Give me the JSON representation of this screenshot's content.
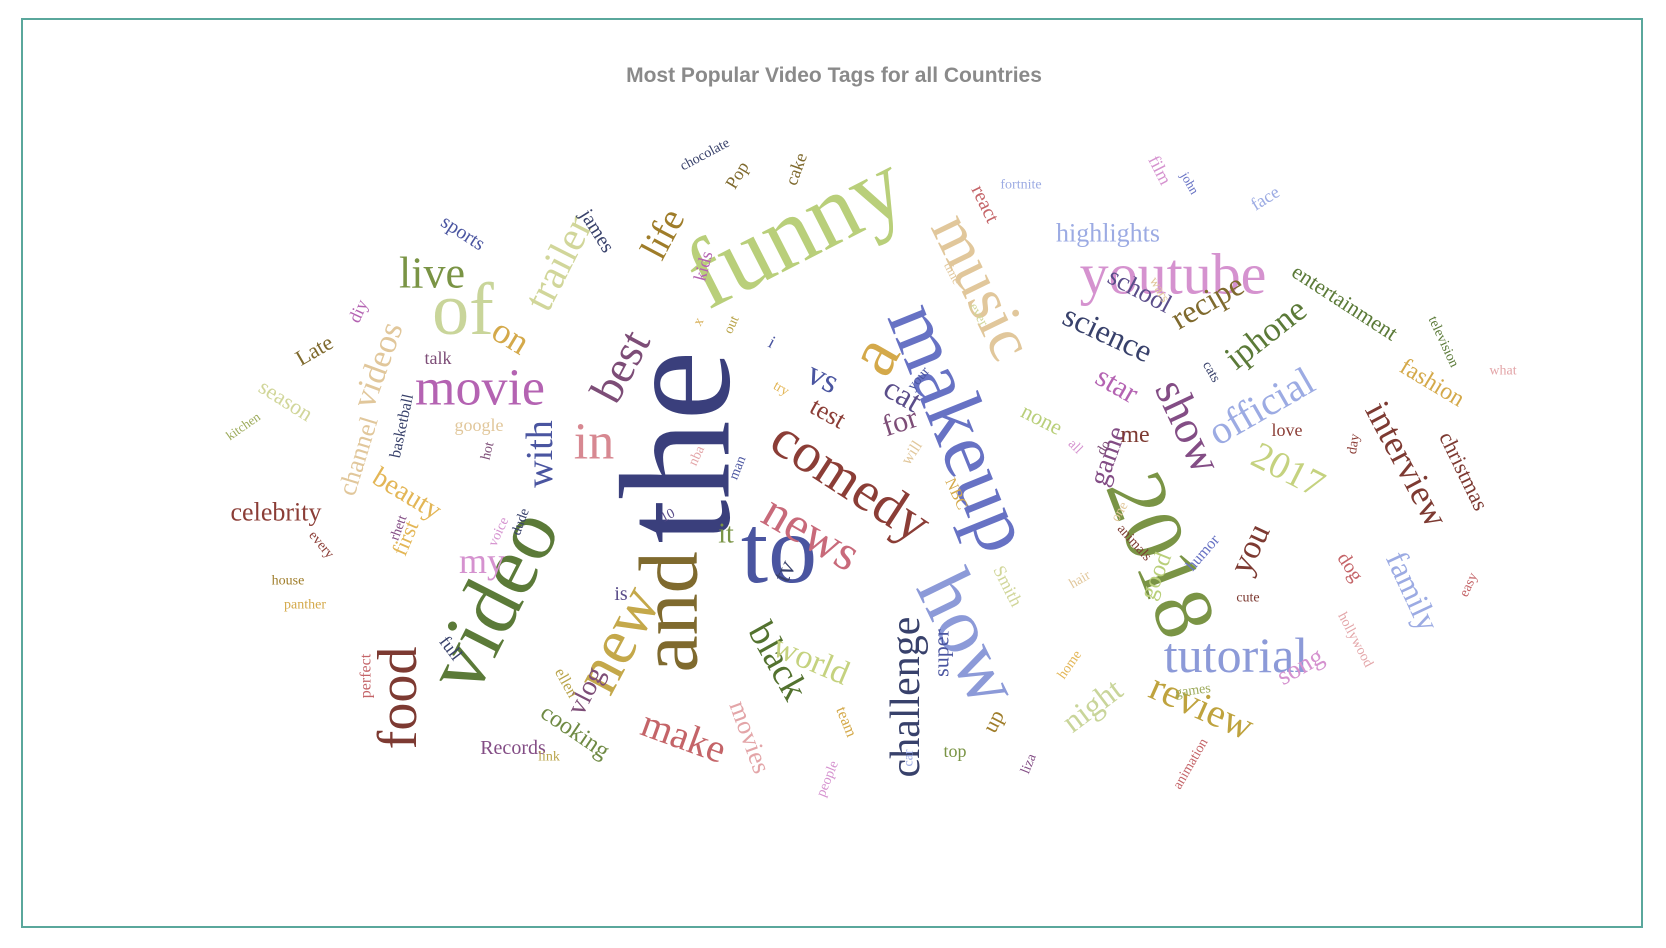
{
  "chart_data": {
    "type": "wordcloud",
    "title": "Most Popular Video Tags for all Countries",
    "title_color": "#8a8a8a",
    "border_color": "#5aa79c",
    "words": [
      {
        "text": "the",
        "color": "#3a3f7c"
      },
      {
        "text": "makeup",
        "color": "#6772c4"
      },
      {
        "text": "funny",
        "color": "#b9cf7a"
      },
      {
        "text": "video",
        "color": "#5b7a38"
      },
      {
        "text": "to",
        "color": "#4a55a0"
      },
      {
        "text": "and",
        "color": "#7f6a2e"
      },
      {
        "text": "how",
        "color": "#8c9ad8"
      },
      {
        "text": "2018",
        "color": "#7a9445"
      },
      {
        "text": "of",
        "color": "#c9d59a"
      },
      {
        "text": "a",
        "color": "#d4a94a"
      },
      {
        "text": "music",
        "color": "#e1c79b"
      },
      {
        "text": "new",
        "color": "#c4a84a"
      },
      {
        "text": "comedy",
        "color": "#8b3d36"
      },
      {
        "text": "food",
        "color": "#7d3a32"
      },
      {
        "text": "youtube",
        "color": "#d592cf"
      },
      {
        "text": "news",
        "color": "#c86a7a"
      },
      {
        "text": "movie",
        "color": "#b463b2"
      },
      {
        "text": "best",
        "color": "#7d4d77"
      },
      {
        "text": "show",
        "color": "#834d85"
      },
      {
        "text": "in",
        "color": "#d78891"
      },
      {
        "text": "challenge",
        "color": "#38416b"
      },
      {
        "text": "tutorial",
        "color": "#8c9ad8"
      },
      {
        "text": "trailer",
        "color": "#d1d69a"
      },
      {
        "text": "live",
        "color": "#7a9445"
      },
      {
        "text": "life",
        "color": "#9f7d2a"
      },
      {
        "text": "official",
        "color": "#9cabe3"
      },
      {
        "text": "interview",
        "color": "#7d3a32"
      },
      {
        "text": "2017",
        "color": "#c5d27f"
      },
      {
        "text": "black",
        "color": "#53722f"
      },
      {
        "text": "with",
        "color": "#4a55a0"
      },
      {
        "text": "review",
        "color": "#bfa33e"
      },
      {
        "text": "science",
        "color": "#38416b"
      },
      {
        "text": "make",
        "color": "#c46468"
      },
      {
        "text": "iphone",
        "color": "#5b7a38"
      },
      {
        "text": "recipe",
        "color": "#7f6a2e"
      },
      {
        "text": "family",
        "color": "#9cabe3"
      },
      {
        "text": "videos",
        "color": "#e1c79b"
      },
      {
        "text": "on",
        "color": "#d4a94a"
      },
      {
        "text": "vs",
        "color": "#4a55a0"
      },
      {
        "text": "world",
        "color": "#c5d27f"
      },
      {
        "text": "you",
        "color": "#7d3a32"
      },
      {
        "text": "beauty",
        "color": "#e3b656"
      },
      {
        "text": "star",
        "color": "#b463b2"
      },
      {
        "text": "night",
        "color": "#c9d59a"
      },
      {
        "text": "cat",
        "color": "#5a4d8a"
      },
      {
        "text": "for",
        "color": "#7d4d77"
      },
      {
        "text": "test",
        "color": "#8b3d36"
      },
      {
        "text": "my",
        "color": "#d592cf"
      },
      {
        "text": "vlog",
        "color": "#7d4d77"
      },
      {
        "text": "it",
        "color": "#7a9445"
      },
      {
        "text": "tv",
        "color": "#38416b"
      },
      {
        "text": "game",
        "color": "#834d85"
      },
      {
        "text": "school",
        "color": "#5a4d8a"
      },
      {
        "text": "highlights",
        "color": "#9cabe3"
      },
      {
        "text": "channel",
        "color": "#e1c79b"
      },
      {
        "text": "cooking",
        "color": "#6f8a44"
      },
      {
        "text": "movies",
        "color": "#e3a5a8"
      },
      {
        "text": "song",
        "color": "#d592cf"
      },
      {
        "text": "celebrity",
        "color": "#8b3d36"
      },
      {
        "text": "entertainment",
        "color": "#5b7a38"
      },
      {
        "text": "christmas",
        "color": "#7d3a32"
      },
      {
        "text": "fashion",
        "color": "#d4a94a"
      },
      {
        "text": "me",
        "color": "#7d3a32"
      },
      {
        "text": "none",
        "color": "#b9cf7a"
      },
      {
        "text": "season",
        "color": "#d1d69a"
      },
      {
        "text": "Late",
        "color": "#7f6a2e"
      },
      {
        "text": "sports",
        "color": "#4a55a0"
      },
      {
        "text": "first",
        "color": "#e3b656"
      },
      {
        "text": "super",
        "color": "#4a55a0"
      },
      {
        "text": "james",
        "color": "#38416b"
      },
      {
        "text": "react",
        "color": "#c46468"
      },
      {
        "text": "up",
        "color": "#9f7d2a"
      },
      {
        "text": "dog",
        "color": "#c46468"
      },
      {
        "text": "is",
        "color": "#5a4d8a"
      },
      {
        "text": "Records",
        "color": "#834d85"
      },
      {
        "text": "Smith",
        "color": "#d1d69a"
      },
      {
        "text": "full",
        "color": "#38416b"
      },
      {
        "text": "diy",
        "color": "#b463b2"
      },
      {
        "text": "talk",
        "color": "#7d4d77"
      },
      {
        "text": "ellen",
        "color": "#b9a44a"
      },
      {
        "text": "love",
        "color": "#8b3d36"
      },
      {
        "text": "will",
        "color": "#e1c79b"
      },
      {
        "text": "NBC",
        "color": "#d4a94a"
      },
      {
        "text": "film",
        "color": "#d592cf"
      },
      {
        "text": "Pop",
        "color": "#7f6a2e"
      },
      {
        "text": "cake",
        "color": "#7f6a2e"
      },
      {
        "text": "kids",
        "color": "#b463b2"
      },
      {
        "text": "face",
        "color": "#9cabe3"
      },
      {
        "text": "perfect",
        "color": "#c46468"
      },
      {
        "text": "basketball",
        "color": "#38416b"
      },
      {
        "text": "top",
        "color": "#7a9445"
      },
      {
        "text": "humor",
        "color": "#6772c4"
      },
      {
        "text": "cute",
        "color": "#7d3a32"
      },
      {
        "text": "animals",
        "color": "#7d3a32"
      },
      {
        "text": "team",
        "color": "#d4a94a"
      },
      {
        "text": "your",
        "color": "#4a55a0"
      },
      {
        "text": "car",
        "color": "#9cabe3"
      },
      {
        "text": "animation",
        "color": "#c46468"
      },
      {
        "text": "hollywood",
        "color": "#e3a5a8"
      },
      {
        "text": "games",
        "color": "#9caa5a"
      },
      {
        "text": "liza",
        "color": "#834d85"
      },
      {
        "text": "rhett",
        "color": "#834d85"
      },
      {
        "text": "hot",
        "color": "#7d4d77"
      },
      {
        "text": "link",
        "color": "#b9a44a"
      },
      {
        "text": "panther",
        "color": "#d4a94a"
      },
      {
        "text": "house",
        "color": "#9f7d2a"
      },
      {
        "text": "every",
        "color": "#8b3d36"
      },
      {
        "text": "voice",
        "color": "#d592cf"
      },
      {
        "text": "dude",
        "color": "#38416b"
      },
      {
        "text": "10",
        "color": "#5a4d8a"
      },
      {
        "text": "man",
        "color": "#4a55a0"
      },
      {
        "text": "nba",
        "color": "#e3a5a8"
      },
      {
        "text": "try",
        "color": "#e3b656"
      },
      {
        "text": "what",
        "color": "#e3a5a8"
      },
      {
        "text": "television",
        "color": "#5b7a38"
      },
      {
        "text": "day",
        "color": "#8b3d36"
      },
      {
        "text": "easy",
        "color": "#c46468"
      },
      {
        "text": "people",
        "color": "#d592cf"
      },
      {
        "text": "home",
        "color": "#e3b656"
      },
      {
        "text": "hair",
        "color": "#e1c79b"
      },
      {
        "text": "one",
        "color": "#e1c79b"
      },
      {
        "text": "do",
        "color": "#7d4d77"
      },
      {
        "text": "all",
        "color": "#d592cf"
      },
      {
        "text": "cats",
        "color": "#38416b"
      },
      {
        "text": "wars",
        "color": "#e1c79b"
      },
      {
        "text": "ever",
        "color": "#d1d69a"
      },
      {
        "text": "time",
        "color": "#e1c79b"
      },
      {
        "text": "fortnite",
        "color": "#9cabe3"
      },
      {
        "text": "john",
        "color": "#6772c4"
      },
      {
        "text": "chocolate",
        "color": "#38416b"
      },
      {
        "text": "kitchen",
        "color": "#9caa5a"
      },
      {
        "text": "google",
        "color": "#e1c79b"
      },
      {
        "text": "i",
        "color": "#4a55a0"
      },
      {
        "text": "x",
        "color": "#d4a94a"
      },
      {
        "text": "out",
        "color": "#b9a44a"
      },
      {
        "text": "good",
        "color": "#b9cf7a"
      },
      {
        "text": "2",
        "color": "#5a4d8a"
      }
    ]
  }
}
